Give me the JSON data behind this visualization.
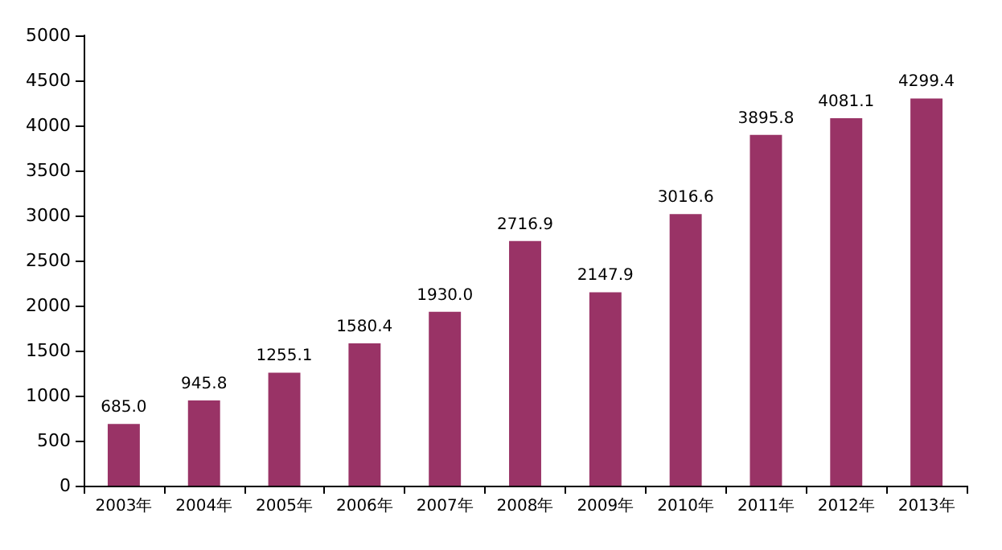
{
  "chart_data": {
    "type": "bar",
    "categories": [
      "2003年",
      "2004年",
      "2005年",
      "2006年",
      "2007年",
      "2008年",
      "2009年",
      "2010年",
      "2011年",
      "2012年",
      "2013年"
    ],
    "values": [
      685.0,
      945.8,
      1255.1,
      1580.4,
      1930.0,
      2716.9,
      2147.9,
      3016.6,
      3895.8,
      4081.1,
      4299.4
    ],
    "value_labels": [
      "685.0",
      "945.8",
      "1255.1",
      "1580.4",
      "1930.0",
      "2716.9",
      "2147.9",
      "3016.6",
      "3895.8",
      "4081.1",
      "4299.4"
    ],
    "color": "#993366",
    "ylim": [
      0,
      5000
    ],
    "yticks": [
      0,
      500,
      1000,
      1500,
      2000,
      2500,
      3000,
      3500,
      4000,
      4500,
      5000
    ],
    "grid": false
  }
}
